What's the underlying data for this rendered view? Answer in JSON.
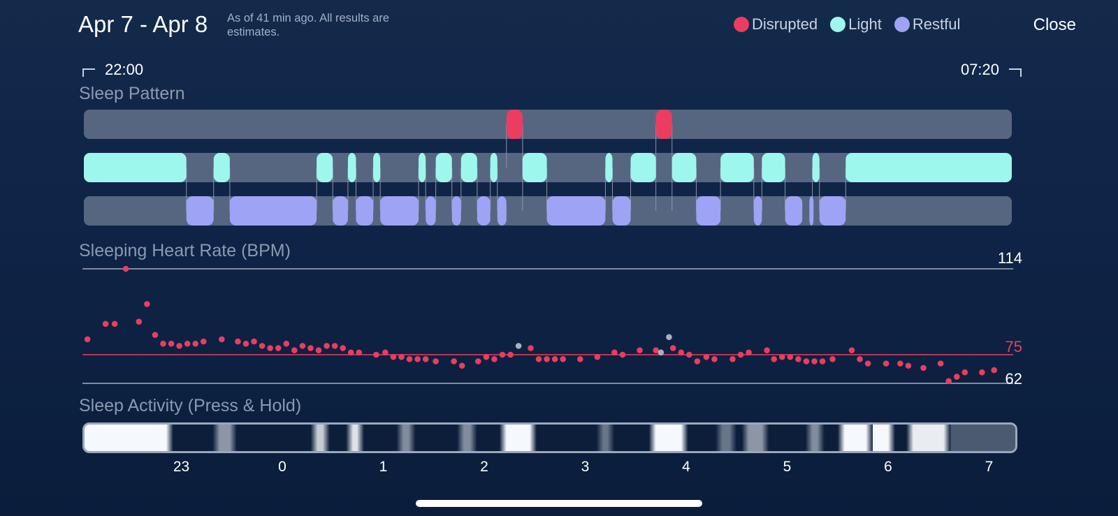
{
  "header": {
    "title": "Apr 7 - Apr 8",
    "subtitle": "As of 41 min ago. All results are estimates.",
    "close_label": "Close"
  },
  "legend": [
    {
      "label": "Disrupted",
      "color": "#ea3d5f"
    },
    {
      "label": "Light",
      "color": "#9ef7ec"
    },
    {
      "label": "Restful",
      "color": "#9ea3f5"
    }
  ],
  "range": {
    "start": "22:00",
    "end": "07:20"
  },
  "sleep_pattern": {
    "label": "Sleep Pattern",
    "colors": {
      "track": "#566680",
      "disrupted": "#ea3d5f",
      "light": "#9ef7ec",
      "restful": "#9ea3f5"
    },
    "segments_hours": {
      "disrupted": [
        [
          2.22,
          2.38
        ],
        [
          3.7,
          3.86
        ]
      ],
      "light": [
        [
          -2.0,
          -0.95
        ],
        [
          -0.68,
          -0.52
        ],
        [
          0.34,
          0.5
        ],
        [
          0.65,
          0.73
        ],
        [
          0.9,
          0.97
        ],
        [
          1.35,
          1.42
        ],
        [
          1.52,
          1.68
        ],
        [
          1.77,
          1.93
        ],
        [
          2.06,
          2.13
        ],
        [
          2.38,
          2.62
        ],
        [
          3.2,
          3.27
        ],
        [
          3.45,
          3.7
        ],
        [
          3.86,
          4.1
        ],
        [
          4.34,
          4.67
        ],
        [
          4.75,
          4.98
        ],
        [
          5.25,
          5.32
        ],
        [
          5.58,
          7.33
        ]
      ],
      "restful": [
        [
          -0.95,
          -0.68
        ],
        [
          -0.52,
          0.34
        ],
        [
          0.5,
          0.65
        ],
        [
          0.73,
          0.9
        ],
        [
          0.97,
          1.35
        ],
        [
          1.42,
          1.52
        ],
        [
          1.68,
          1.77
        ],
        [
          1.93,
          2.06
        ],
        [
          2.13,
          2.22
        ],
        [
          2.62,
          3.2
        ],
        [
          3.27,
          3.45
        ],
        [
          4.1,
          4.34
        ],
        [
          4.67,
          4.75
        ],
        [
          4.98,
          5.15
        ],
        [
          5.22,
          5.25
        ],
        [
          5.32,
          5.58
        ]
      ]
    }
  },
  "heart_rate": {
    "label": "Sleeping Heart Rate (BPM)",
    "max_label": "114",
    "avg_label": "75",
    "min_label": "62",
    "ymin": 62,
    "ymax": 114,
    "avg": 75,
    "colors": {
      "normal": "#ea3d5f",
      "gray": "#aab0ba"
    },
    "points": [
      [
        -1.93,
        82
      ],
      [
        -1.75,
        89
      ],
      [
        -1.66,
        89
      ],
      [
        -1.55,
        114
      ],
      [
        -1.42,
        90
      ],
      [
        -1.34,
        98
      ],
      [
        -1.26,
        84
      ],
      [
        -1.18,
        80
      ],
      [
        -1.1,
        80
      ],
      [
        -1.02,
        79
      ],
      [
        -0.94,
        80
      ],
      [
        -0.86,
        80
      ],
      [
        -0.78,
        81
      ],
      [
        -0.6,
        82
      ],
      [
        -0.44,
        81
      ],
      [
        -0.36,
        80
      ],
      [
        -0.28,
        81
      ],
      [
        -0.2,
        79
      ],
      [
        -0.12,
        78
      ],
      [
        -0.04,
        78
      ],
      [
        0.04,
        80
      ],
      [
        0.12,
        77
      ],
      [
        0.2,
        79
      ],
      [
        0.28,
        78
      ],
      [
        0.36,
        77
      ],
      [
        0.44,
        79
      ],
      [
        0.52,
        79
      ],
      [
        0.6,
        78
      ],
      [
        0.68,
        76
      ],
      [
        0.76,
        76
      ],
      [
        0.93,
        75
      ],
      [
        1.02,
        76
      ],
      [
        1.1,
        74
      ],
      [
        1.18,
        74
      ],
      [
        1.26,
        73
      ],
      [
        1.34,
        73
      ],
      [
        1.42,
        73
      ],
      [
        1.52,
        72
      ],
      [
        1.7,
        72
      ],
      [
        1.78,
        70
      ],
      [
        1.94,
        72
      ],
      [
        2.02,
        74
      ],
      [
        2.1,
        73
      ],
      [
        2.18,
        75
      ],
      [
        2.26,
        75
      ],
      [
        2.46,
        78
      ],
      [
        2.54,
        73
      ],
      [
        2.62,
        73
      ],
      [
        2.7,
        73
      ],
      [
        2.78,
        73
      ],
      [
        2.95,
        73
      ],
      [
        3.12,
        74
      ],
      [
        3.29,
        76
      ],
      [
        3.37,
        75
      ],
      [
        3.54,
        77
      ],
      [
        3.7,
        77
      ],
      [
        3.87,
        78
      ],
      [
        3.95,
        76
      ],
      [
        4.03,
        75
      ],
      [
        4.11,
        72
      ],
      [
        4.2,
        74
      ],
      [
        4.28,
        73
      ],
      [
        4.46,
        73
      ],
      [
        4.54,
        75
      ],
      [
        4.62,
        76
      ],
      [
        4.8,
        77
      ],
      [
        4.87,
        73
      ],
      [
        4.95,
        74
      ],
      [
        5.03,
        74
      ],
      [
        5.11,
        73
      ],
      [
        5.19,
        72
      ],
      [
        5.27,
        72
      ],
      [
        5.35,
        72
      ],
      [
        5.45,
        73
      ],
      [
        5.64,
        77
      ],
      [
        5.72,
        73
      ],
      [
        5.8,
        71
      ],
      [
        5.98,
        71
      ],
      [
        6.12,
        71
      ],
      [
        6.2,
        70
      ],
      [
        6.35,
        69
      ],
      [
        6.52,
        71
      ],
      [
        6.6,
        63
      ],
      [
        6.68,
        65
      ],
      [
        6.76,
        67
      ],
      [
        6.93,
        67
      ],
      [
        7.05,
        68
      ]
    ],
    "gray_points": [
      [
        2.34,
        79
      ],
      [
        3.75,
        76
      ],
      [
        3.83,
        83
      ]
    ]
  },
  "activity": {
    "label": "Sleep Activity (Press & Hold)",
    "bright": [
      [
        -2.0,
        -1.15,
        1.0
      ],
      [
        -0.62,
        -0.52,
        0.55
      ],
      [
        0.35,
        0.4,
        0.8
      ],
      [
        0.7,
        0.74,
        0.9
      ],
      [
        1.2,
        1.25,
        0.5
      ],
      [
        1.8,
        1.86,
        0.5
      ],
      [
        2.22,
        2.45,
        1.0
      ],
      [
        3.18,
        3.22,
        0.4
      ],
      [
        3.7,
        3.95,
        1.0
      ],
      [
        4.36,
        4.43,
        0.4
      ],
      [
        4.62,
        4.75,
        0.55
      ],
      [
        5.25,
        5.3,
        0.5
      ],
      [
        5.57,
        5.78,
        1.0
      ],
      [
        5.8,
        6.0,
        1.0
      ],
      [
        6.25,
        6.55,
        0.95
      ]
    ]
  },
  "x_axis": {
    "ticks": [
      {
        "h": -1.0,
        "label": "23"
      },
      {
        "h": 0,
        "label": "0"
      },
      {
        "h": 1,
        "label": "1"
      },
      {
        "h": 2,
        "label": "2"
      },
      {
        "h": 3,
        "label": "3"
      },
      {
        "h": 4,
        "label": "4"
      },
      {
        "h": 5,
        "label": "5"
      },
      {
        "h": 6,
        "label": "6"
      },
      {
        "h": 7,
        "label": "7"
      }
    ]
  }
}
